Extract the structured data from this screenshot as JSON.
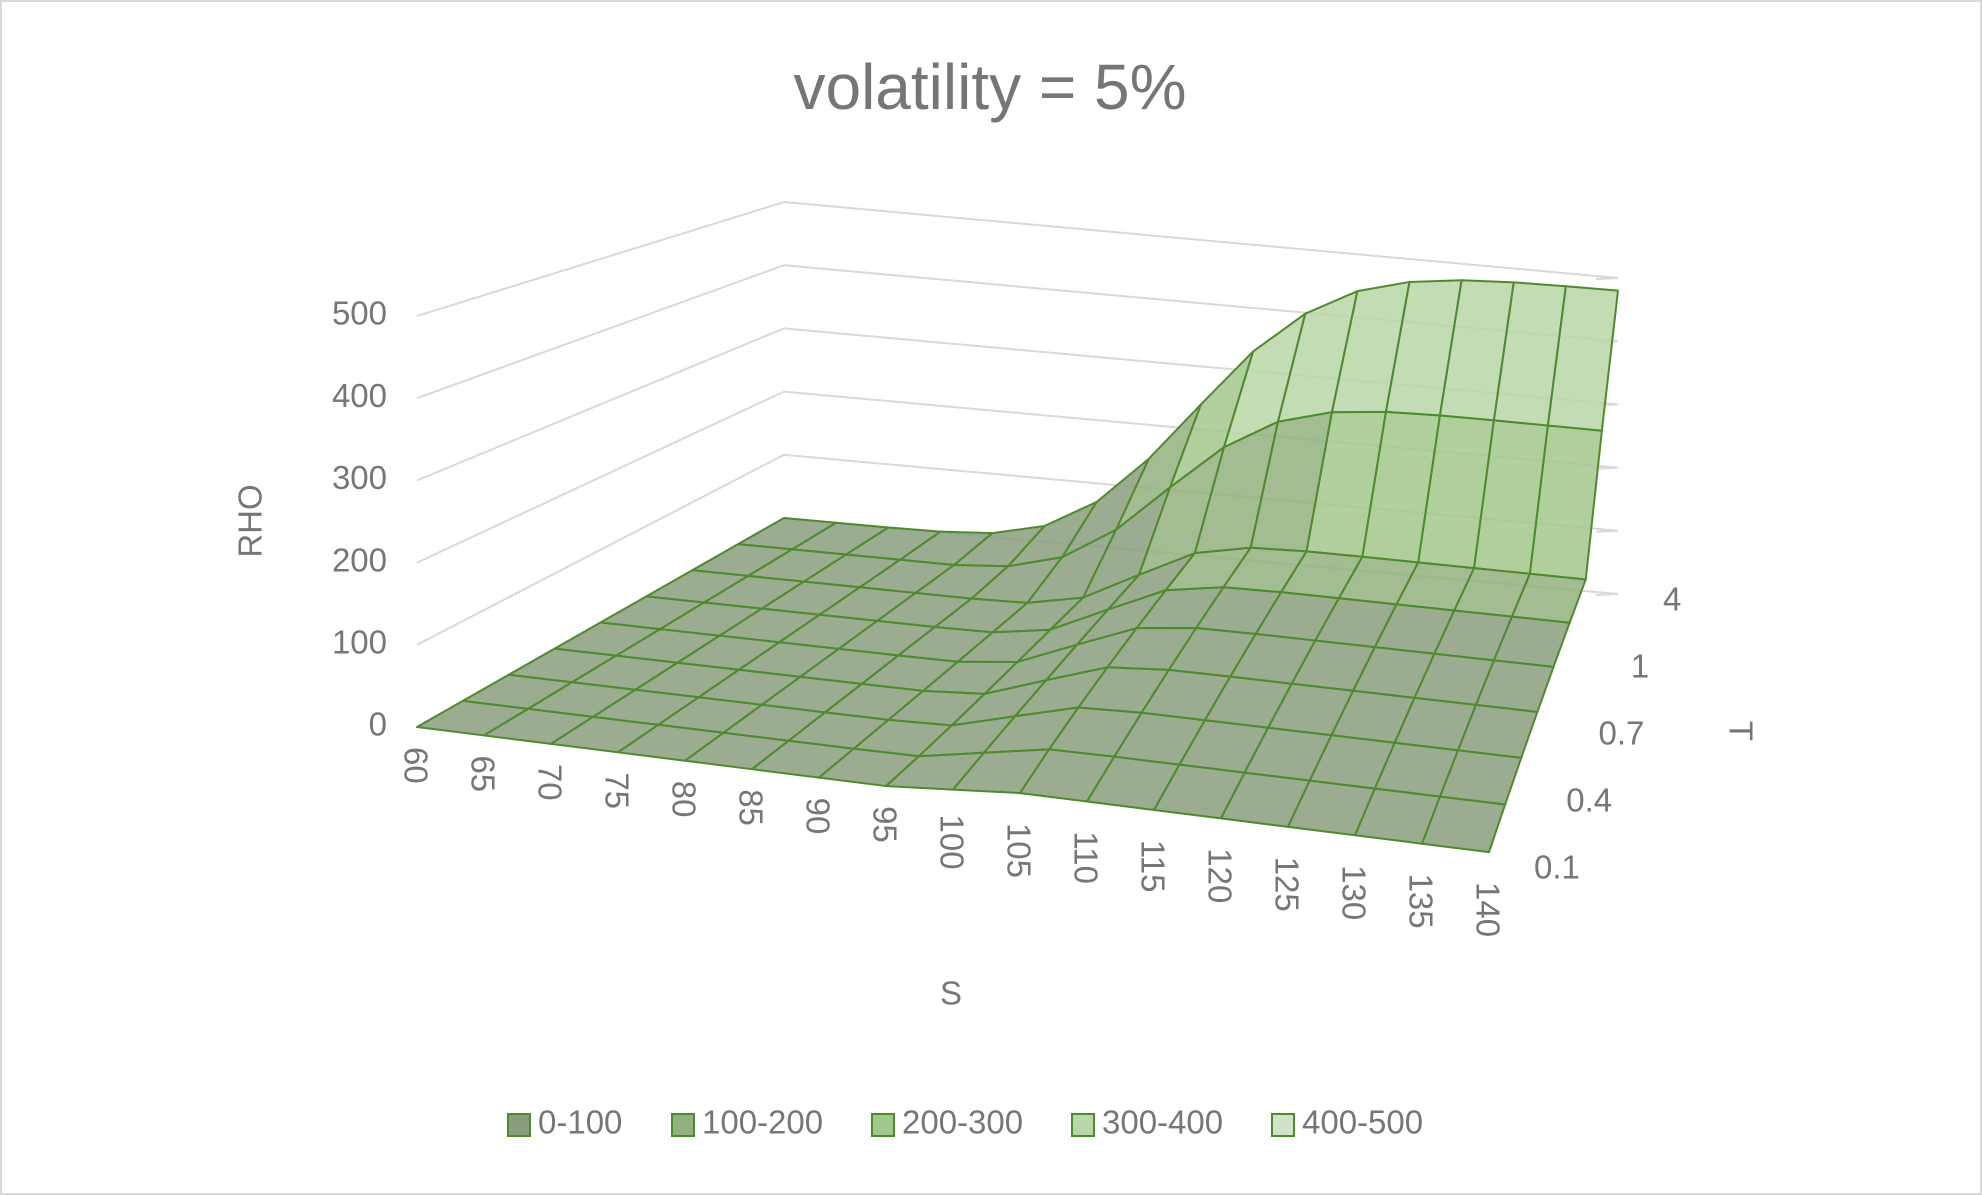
{
  "chart_data": {
    "type": "surface",
    "title": "volatility = 5%",
    "x_label": "S",
    "y_label": "T",
    "z_label": "RHO",
    "categories": [
      "60",
      "65",
      "70",
      "75",
      "80",
      "85",
      "90",
      "95",
      "100",
      "105",
      "110",
      "115",
      "120",
      "125",
      "130",
      "135",
      "140"
    ],
    "depth_categories": [
      "0.1",
      null,
      "0.4",
      null,
      "0.7",
      null,
      "1",
      null,
      "4"
    ],
    "z": [
      [
        0,
        0,
        0,
        0,
        0,
        0,
        0,
        0,
        6,
        12,
        12,
        12,
        12,
        12,
        12,
        12,
        12
      ],
      [
        0,
        0,
        0,
        0,
        0,
        0,
        0,
        0.6,
        15,
        29.2,
        30,
        30,
        30,
        30,
        30,
        30,
        30
      ],
      [
        0,
        0,
        0,
        0,
        0,
        0,
        0,
        2.5,
        24,
        45,
        48,
        48,
        48,
        48,
        48,
        48,
        48
      ],
      [
        0,
        0,
        0,
        0,
        0,
        0,
        0.1,
        5.5,
        33,
        59.7,
        65.7,
        66,
        66,
        66,
        66,
        66,
        66
      ],
      [
        0,
        0,
        0,
        0,
        0,
        0,
        0.5,
        9.2,
        42,
        73.8,
        83.1,
        84,
        84,
        84,
        84,
        84,
        84
      ],
      [
        0,
        0,
        0,
        0,
        0,
        0,
        1.1,
        13.6,
        51,
        87.2,
        100.1,
        101.9,
        102,
        102,
        102,
        102,
        102
      ],
      [
        0,
        0,
        0,
        0,
        0,
        0,
        2,
        18.2,
        60,
        100.3,
        116.6,
        119.6,
        120,
        120,
        120,
        120,
        120
      ],
      [
        0,
        0,
        0,
        0,
        0,
        6,
        27.6,
        77.4,
        150,
        219.3,
        266.1,
        288.6,
        297,
        299.4,
        300,
        300,
        300
      ],
      [
        0,
        0,
        0,
        1,
        6.2,
        25,
        70.6,
        146.4,
        240,
        331.2,
        398.4,
        441.6,
        463.7,
        473.8,
        478.1,
        479.5,
        480
      ]
    ],
    "zlim": [
      0,
      500
    ],
    "zticks": [
      0,
      100,
      200,
      300,
      400,
      500
    ],
    "grid": true,
    "legend_position": "bottom",
    "legend": [
      {
        "name": "0-100",
        "color": "#8a9e7c",
        "range": [
          0,
          100
        ]
      },
      {
        "name": "100-200",
        "color": "#93b07f",
        "range": [
          100,
          200
        ]
      },
      {
        "name": "200-300",
        "color": "#a2c78c",
        "range": [
          200,
          300
        ]
      },
      {
        "name": "300-400",
        "color": "#b8d6a6",
        "range": [
          300,
          400
        ]
      },
      {
        "name": "400-500",
        "color": "#d0e3c6",
        "range": [
          400,
          500
        ]
      }
    ],
    "line_color": "#4f8a2f"
  }
}
